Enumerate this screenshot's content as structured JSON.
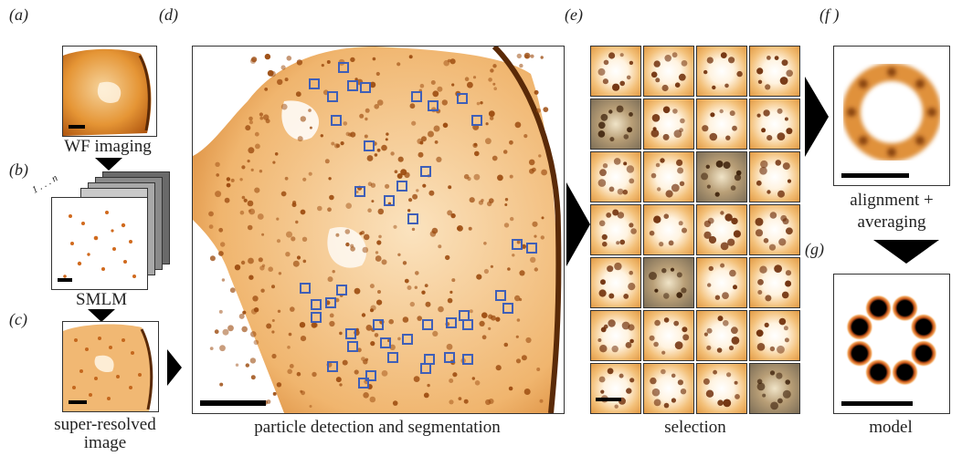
{
  "panels": {
    "a": {
      "letter": "(a)"
    },
    "b": {
      "letter": "(b)"
    },
    "c": {
      "letter": "(c)"
    },
    "d": {
      "letter": "(d)"
    },
    "e": {
      "letter": "(e)"
    },
    "f": {
      "letter": "(f )"
    },
    "g": {
      "letter": "(g)"
    }
  },
  "captions": {
    "wf": "WF imaging",
    "stack_index": "1 . . . n",
    "smlm": "SMLM",
    "super_line1": "super-resolved",
    "super_line2": "image",
    "detection": "particle detection and segmentation",
    "selection": "selection",
    "align_line1": "alignment +",
    "align_line2": "averaging",
    "model": "model"
  },
  "colors": {
    "accent_box": "#3f5fb8",
    "stain_dark": "#5a2a08",
    "stain_mid": "#c4671d",
    "stain_light": "#f3c58a"
  },
  "selection_grid": {
    "rows": 7,
    "cols": 4,
    "dark_cells": [
      4,
      10,
      17,
      27
    ]
  },
  "model_blobs": 8
}
